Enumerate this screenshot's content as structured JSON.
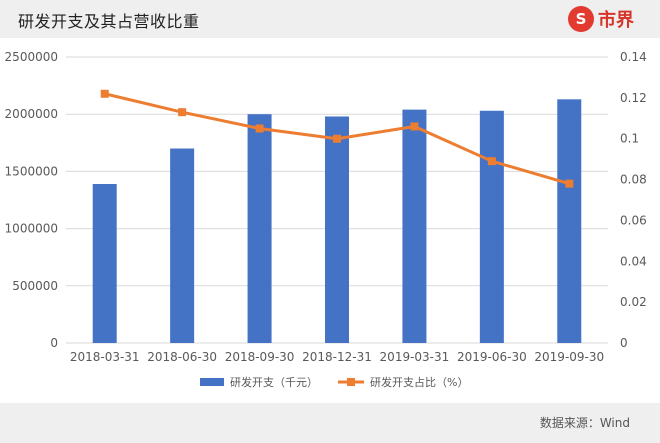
{
  "title": "研发开支及其占营收比重",
  "logo": {
    "symbol": "S",
    "text": "市界"
  },
  "source": "数据来源：Wind",
  "colors": {
    "bar": "#4472c4",
    "line": "#ed7d31",
    "grid": "#d9d9d9",
    "header_bg": "#efefef",
    "logo": "#e33a2f"
  },
  "chart_data": {
    "type": "bar",
    "categories": [
      "2018-03-31",
      "2018-06-30",
      "2018-09-30",
      "2018-12-31",
      "2019-03-31",
      "2019-06-30",
      "2019-09-30"
    ],
    "series": [
      {
        "name": "研发开支（千元）",
        "type": "bar",
        "axis": "left",
        "values": [
          1390000,
          1700000,
          2000000,
          1980000,
          2040000,
          2030000,
          2130000
        ]
      },
      {
        "name": "研发开支占比（%）",
        "type": "line",
        "axis": "right",
        "values": [
          0.122,
          0.113,
          0.105,
          0.1,
          0.106,
          0.089,
          0.078
        ]
      }
    ],
    "y_left": {
      "ylim": [
        0,
        2500000
      ],
      "ticks": [
        "0",
        "500000",
        "1000000",
        "1500000",
        "2000000",
        "2500000"
      ]
    },
    "y_right": {
      "ylim": [
        0,
        0.14
      ],
      "ticks": [
        "0",
        "0.02",
        "0.04",
        "0.06",
        "0.08",
        "0.1",
        "0.12",
        "0.14"
      ]
    },
    "grid": true,
    "legend": "bottom"
  }
}
